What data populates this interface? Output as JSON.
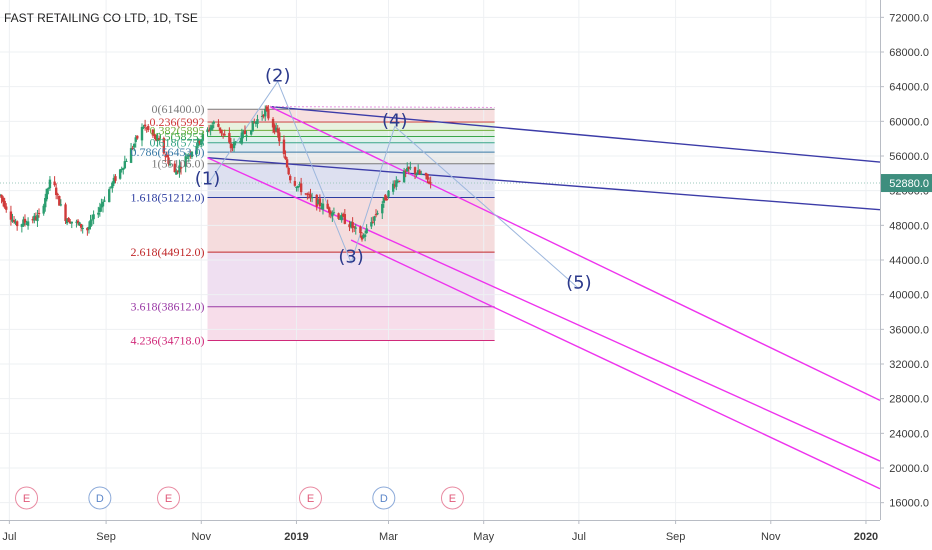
{
  "colors": {
    "up": "#2a9d6f",
    "down": "#d03a3a",
    "channel_blue": "#3c3ca8",
    "channel_magenta": "#ee33ee",
    "wave_label": "#2c3a8c",
    "last_price_bg": "#3e8e7e",
    "event_earnings": "#e05a7a",
    "event_dividend": "#5b86c9"
  },
  "chart_data": {
    "type": "candlestick",
    "title": "FAST RETAILING CO LTD, 1D, TSE",
    "symbol": "FAST RETAILING CO LTD",
    "interval": "1D",
    "exchange": "TSE",
    "ylim": [
      14000,
      74000
    ],
    "y_ticks": [
      "72000.0",
      "68000.0",
      "64000.0",
      "60000.0",
      "56000.0",
      "52000.0",
      "48000.0",
      "44000.0",
      "40000.0",
      "36000.0",
      "32000.0",
      "28000.0",
      "24000.0",
      "20000.0",
      "16000.0"
    ],
    "y_tick_values": [
      72000,
      68000,
      64000,
      60000,
      56000,
      52000,
      48000,
      44000,
      40000,
      36000,
      32000,
      28000,
      24000,
      20000,
      16000
    ],
    "last_price": {
      "label": "52880.0",
      "value": 52880
    },
    "x_start": "2018-06-25",
    "x_end": "2020-01-10",
    "x_ticks": [
      {
        "label": "Jul",
        "date": "2018-07-01"
      },
      {
        "label": "Sep",
        "date": "2018-09-01"
      },
      {
        "label": "Nov",
        "date": "2018-11-01"
      },
      {
        "label": "2019",
        "date": "2019-01-01"
      },
      {
        "label": "Mar",
        "date": "2019-03-01"
      },
      {
        "label": "May",
        "date": "2019-05-01"
      },
      {
        "label": "Jul",
        "date": "2019-07-01"
      },
      {
        "label": "Sep",
        "date": "2019-09-01"
      },
      {
        "label": "Nov",
        "date": "2019-11-01"
      },
      {
        "label": "2020",
        "date": "2020-01-01"
      }
    ],
    "price_path": [
      [
        "2018-06-25",
        51500
      ],
      [
        "2018-07-05",
        48000
      ],
      [
        "2018-07-20",
        49000
      ],
      [
        "2018-07-28",
        53500
      ],
      [
        "2018-08-05",
        49000
      ],
      [
        "2018-08-20",
        47500
      ],
      [
        "2018-09-01",
        51500
      ],
      [
        "2018-09-15",
        56000
      ],
      [
        "2018-09-25",
        59500
      ],
      [
        "2018-10-05",
        57500
      ],
      [
        "2018-10-15",
        54000
      ],
      [
        "2018-10-25",
        56500
      ],
      [
        "2018-11-10",
        60000
      ],
      [
        "2018-11-20",
        57000
      ],
      [
        "2018-12-01",
        59000
      ],
      [
        "2018-12-12",
        61200
      ],
      [
        "2018-12-20",
        58500
      ],
      [
        "2018-12-28",
        53500
      ],
      [
        "2019-01-10",
        51000
      ],
      [
        "2019-01-25",
        49500
      ],
      [
        "2019-02-05",
        48000
      ],
      [
        "2019-02-12",
        46500
      ],
      [
        "2019-02-20",
        49000
      ],
      [
        "2019-03-05",
        53000
      ],
      [
        "2019-03-15",
        54500
      ],
      [
        "2019-03-22",
        53800
      ],
      [
        "2019-03-28",
        52880
      ]
    ],
    "waves": [
      {
        "label": "(1)",
        "date": "2018-11-05",
        "price": 52700
      },
      {
        "label": "(2)",
        "date": "2018-12-20",
        "price": 64600
      },
      {
        "label": "(3)",
        "date": "2019-02-05",
        "price": 43700
      },
      {
        "label": "(4)",
        "date": "2019-03-05",
        "price": 59400
      },
      {
        "label": "(5)",
        "date": "2019-07-01",
        "price": 40700
      }
    ],
    "fib_levels": [
      {
        "ratio": "0",
        "value": "61400.0",
        "label": "0(61400.0)",
        "color": "#7a7a7a"
      },
      {
        "ratio": "0.236",
        "value": "59924.0",
        "label": "0.236(5992",
        "color": "#d03a3a"
      },
      {
        "ratio": "0.382",
        "value": "58952.0",
        "label": "0.382(5895",
        "color": "#6fae3a"
      },
      {
        "ratio": "0.5",
        "value": "58253.0",
        "label": "0.5(58253",
        "color": "#3aa64a"
      },
      {
        "ratio": "0.618",
        "value": "57536.0",
        "label": "0.618(5753",
        "color": "#3aa68a"
      },
      {
        "ratio": "0.786",
        "value": "56453.0",
        "label": "0.786(56453.0)",
        "color": "#3a7aa6"
      },
      {
        "ratio": "1",
        "value": "55106.0",
        "label": "1(55106.0)",
        "color": "#7a7a7a"
      },
      {
        "ratio": "1.618",
        "value": "51212.0",
        "label": "1.618(51212.0)",
        "color": "#2b3ca0"
      },
      {
        "ratio": "2.618",
        "value": "44912.0",
        "label": "2.618(44912.0)",
        "color": "#c0282a"
      },
      {
        "ratio": "3.618",
        "value": "38612.0",
        "label": "3.618(38612.0)",
        "color": "#9a3aa6"
      },
      {
        "ratio": "4.236",
        "value": "34718.0",
        "label": "4.236(34718.0)",
        "color": "#d02a7a"
      }
    ],
    "fib_range": {
      "start": "2018-11-05",
      "end": "2019-05-08"
    },
    "trend_lines": [
      {
        "style": "blue",
        "from": [
          "2018-12-15",
          61700
        ],
        "to": [
          "2020-01-10",
          55300
        ]
      },
      {
        "style": "blue",
        "from": [
          "2018-11-05",
          55800
        ],
        "to": [
          "2020-01-10",
          49800
        ]
      },
      {
        "style": "magenta",
        "from": [
          "2018-12-15",
          61700
        ],
        "to": [
          "2020-01-10",
          27800
        ]
      },
      {
        "style": "magenta",
        "from": [
          "2018-11-05",
          55800
        ],
        "to": [
          "2020-01-10",
          20800
        ]
      },
      {
        "style": "magenta",
        "from": [
          "2019-02-05",
          46300
        ],
        "to": [
          "2020-01-10",
          17600
        ]
      }
    ],
    "events": [
      {
        "label": "E",
        "kind": "earnings",
        "date": "2018-07-12"
      },
      {
        "label": "D",
        "kind": "dividend",
        "date": "2018-08-28"
      },
      {
        "label": "E",
        "kind": "earnings",
        "date": "2018-10-11"
      },
      {
        "label": "E",
        "kind": "earnings",
        "date": "2019-01-10"
      },
      {
        "label": "D",
        "kind": "dividend",
        "date": "2019-02-26"
      },
      {
        "label": "E",
        "kind": "earnings",
        "date": "2019-04-11"
      }
    ]
  }
}
